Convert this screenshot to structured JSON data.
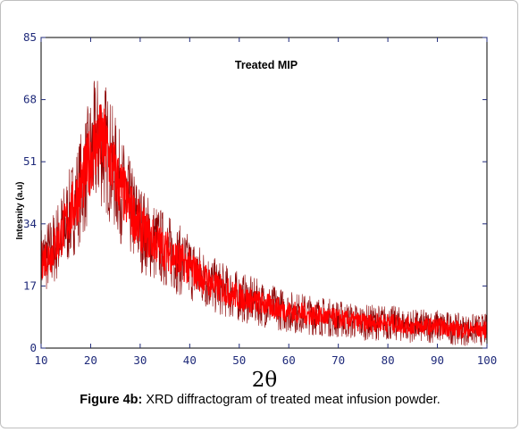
{
  "chart_data": {
    "type": "line",
    "title": "Treated MIP",
    "xlabel": "2θ",
    "ylabel": "Intesnity (a.u)",
    "xlim": [
      10,
      100
    ],
    "ylim": [
      0,
      85
    ],
    "x_ticks": [
      10,
      20,
      30,
      40,
      50,
      60,
      70,
      80,
      90,
      100
    ],
    "y_ticks": [
      0,
      17,
      34,
      51,
      68,
      85
    ],
    "grid": false,
    "legend": "none",
    "colors": {
      "fill": "#ff0000",
      "spikes": "#8b0000",
      "axis": "#000000",
      "tick_text": "#1f2a7a"
    },
    "series": [
      {
        "x": [
          10,
          12,
          14,
          16,
          18,
          20,
          21,
          22,
          23,
          24,
          26,
          28,
          30,
          32,
          35,
          38,
          40,
          45,
          50,
          55,
          60,
          65,
          70,
          75,
          80,
          85,
          90,
          95,
          100
        ],
        "values": [
          24,
          26,
          31,
          37,
          44,
          52,
          56,
          57,
          55,
          51,
          44,
          38,
          33,
          30,
          27,
          24,
          22,
          17,
          14,
          12,
          10,
          9,
          8,
          7,
          7,
          6,
          6,
          5,
          5
        ]
      }
    ]
  },
  "caption": {
    "label": "Figure 4b:",
    "text": " XRD diffractogram of treated meat infusion powder."
  }
}
